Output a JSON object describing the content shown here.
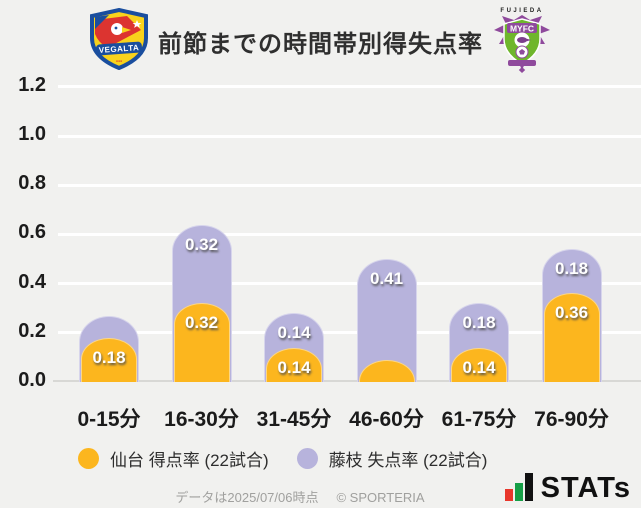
{
  "header": {
    "title": "前節までの時間帯別得失点率"
  },
  "logos": {
    "left": {
      "banner_text": "VEGALTA"
    },
    "right": {
      "top_text": "FUJIEDA",
      "shield_text": "MYFC"
    }
  },
  "chart_data": {
    "type": "bar",
    "stacked": true,
    "title": "前節までの時間帯別得失点率",
    "categories": [
      "0-15分",
      "16-30分",
      "31-45分",
      "46-60分",
      "61-75分",
      "76-90分"
    ],
    "series": [
      {
        "name": "仙台 得点率 (22試合)",
        "color": "#FCB61E",
        "values": [
          0.18,
          0.32,
          0.14,
          0.09,
          0.14,
          0.36
        ],
        "data_labels": [
          "0.18",
          "0.32",
          "0.14",
          "",
          "0.14",
          "0.36"
        ]
      },
      {
        "name": "藤枝 失点率 (22試合)",
        "color": "#B7B3DC",
        "values": [
          0.09,
          0.32,
          0.14,
          0.41,
          0.18,
          0.18
        ],
        "data_labels": [
          "",
          "0.32",
          "0.14",
          "0.41",
          "0.18",
          "0.18"
        ]
      }
    ],
    "ylim": [
      0,
      1.2
    ],
    "yticks": [
      "0.0",
      "0.2",
      "0.4",
      "0.6",
      "0.8",
      "1.0",
      "1.2"
    ],
    "grid": true,
    "legend_position": "bottom"
  },
  "footer": {
    "note": "データは2025/07/06時点",
    "copyright": "© SPORTERIA",
    "brand": "STATs"
  },
  "colors": {
    "background": "#F1F1EF",
    "sendai_bar": "#FCB61E",
    "fujieda_bar": "#B7B3DC",
    "gridline": "#FFFFFF",
    "baseline": "#D8D8D5",
    "title_text": "#2F2F2F",
    "axis_text": "#1C1C1C",
    "value_label_text": "#FFFFFF",
    "footer_text": "#A0A09E",
    "brand_red": "#E8372C",
    "brand_green": "#169E46",
    "brand_black": "#111111"
  }
}
